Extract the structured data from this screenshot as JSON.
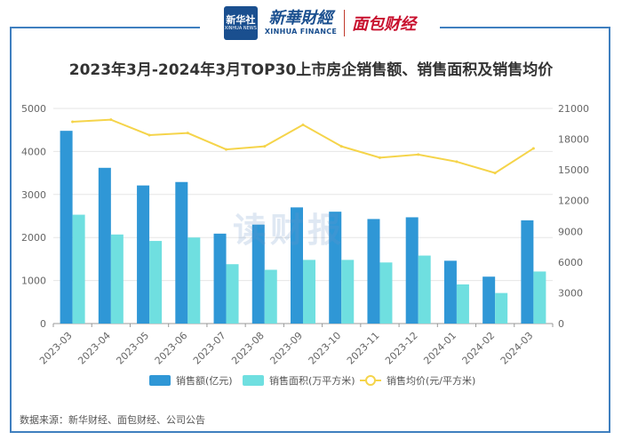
{
  "header": {
    "logo_box_line1": "新华社",
    "logo_box_line2": "XINHUA NEWS",
    "brand_cn": "新華財經",
    "brand_en": "XINHUA FINANCE",
    "brand2": "面包财经"
  },
  "watermark": "读财报",
  "source": "数据来源：新华财经、面包财经、公司公告",
  "colors": {
    "bar1": "#2f97d6",
    "bar2": "#6fdfe0",
    "line": "#f5d44a",
    "frame": "#3f7fbf"
  },
  "chart_data": {
    "type": "bar",
    "title": "2023年3月-2024年3月TOP30上市房企销售额、销售面积及销售均价",
    "categories": [
      "2023-03",
      "2023-04",
      "2023-05",
      "2023-06",
      "2023-07",
      "2023-08",
      "2023-09",
      "2023-10",
      "2023-11",
      "2023-12",
      "2024-01",
      "2024-02",
      "2024-03"
    ],
    "ylim_left": [
      0,
      5000
    ],
    "yticks_left": [
      0,
      1000,
      2000,
      3000,
      4000,
      5000
    ],
    "ylim_right": [
      0,
      21000
    ],
    "yticks_right": [
      0,
      3000,
      6000,
      9000,
      12000,
      15000,
      18000,
      21000
    ],
    "grid": true,
    "legend_position": "bottom",
    "series": [
      {
        "name": "销售额(亿元)",
        "axis": "left",
        "kind": "bar",
        "values": [
          4480,
          3620,
          3210,
          3290,
          2090,
          2300,
          2700,
          2600,
          2430,
          2470,
          1460,
          1090,
          2400
        ]
      },
      {
        "name": "销售面积(万平方米)",
        "axis": "left",
        "kind": "bar",
        "values": [
          2530,
          2070,
          1920,
          2000,
          1380,
          1250,
          1480,
          1480,
          1420,
          1580,
          910,
          710,
          1210
        ]
      },
      {
        "name": "销售均价(元/平方米)",
        "axis": "right",
        "kind": "line",
        "values": [
          19700,
          19900,
          18400,
          18600,
          17000,
          17300,
          19400,
          17300,
          16200,
          16500,
          15800,
          14700,
          17100
        ]
      }
    ]
  }
}
